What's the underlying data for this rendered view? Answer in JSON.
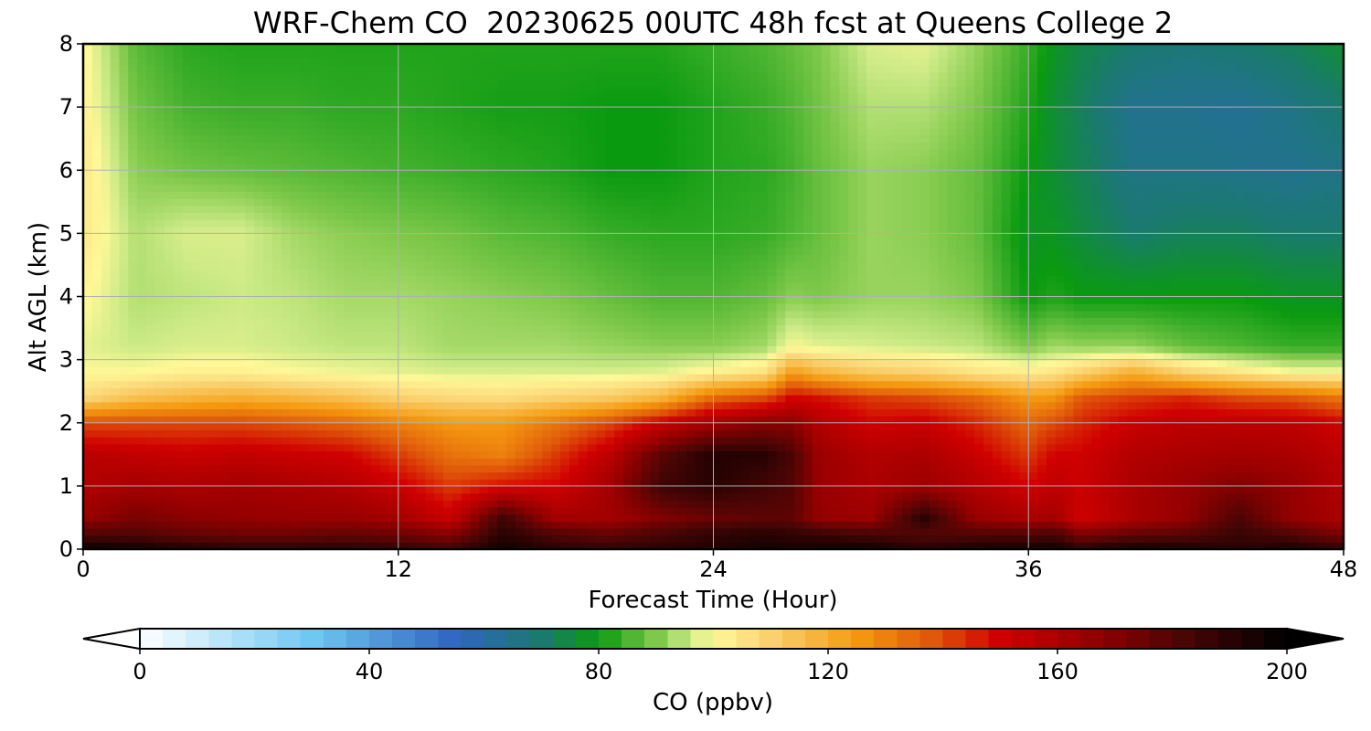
{
  "chart_data": {
    "type": "heatmap",
    "title": "WRF-Chem CO  20230625 00UTC 48h fcst at Queens College 2",
    "xlabel": "Forecast Time (Hour)",
    "ylabel": "Alt AGL (km)",
    "xlim": [
      0,
      48
    ],
    "ylim": [
      0,
      8
    ],
    "xticks": [
      "0",
      "12",
      "24",
      "36",
      "48"
    ],
    "yticks": [
      "0",
      "1",
      "2",
      "3",
      "4",
      "5",
      "6",
      "7",
      "8"
    ],
    "grid": true,
    "colorbar": {
      "label": "CO  (ppbv)",
      "range": [
        0,
        200
      ],
      "ticks": [
        "0",
        "40",
        "80",
        "120",
        "160",
        "200"
      ],
      "extend": "both",
      "stops": [
        {
          "v": 0,
          "c": "#ffffff"
        },
        {
          "v": 30,
          "c": "#6ec8f2"
        },
        {
          "v": 55,
          "c": "#2f65c0"
        },
        {
          "v": 70,
          "c": "#1a7a6e"
        },
        {
          "v": 80,
          "c": "#0a9a10"
        },
        {
          "v": 90,
          "c": "#7ec84a"
        },
        {
          "v": 96,
          "c": "#ccea86"
        },
        {
          "v": 100,
          "c": "#fff898"
        },
        {
          "v": 108,
          "c": "#fbd87a"
        },
        {
          "v": 125,
          "c": "#f59a10"
        },
        {
          "v": 138,
          "c": "#e0580a"
        },
        {
          "v": 150,
          "c": "#d00000"
        },
        {
          "v": 165,
          "c": "#980000"
        },
        {
          "v": 182,
          "c": "#4a0505"
        },
        {
          "v": 200,
          "c": "#000000"
        }
      ]
    },
    "x": [
      0,
      2,
      4,
      6,
      8,
      10,
      12,
      14,
      16,
      18,
      20,
      22,
      24,
      26,
      27,
      28,
      30,
      32,
      34,
      36,
      37,
      38,
      40,
      42,
      44,
      46,
      48
    ],
    "y": [
      0,
      0.25,
      0.5,
      1,
      1.5,
      2,
      2.4,
      2.8,
      3.2,
      4,
      5,
      6,
      7,
      8
    ],
    "z": [
      [
        198,
        180,
        165,
        158,
        156,
        140,
        108,
        100,
        98,
        101,
        104,
        104,
        102,
        101
      ],
      [
        196,
        180,
        172,
        162,
        154,
        140,
        115,
        100,
        96,
        94,
        94,
        91,
        89,
        87
      ],
      [
        192,
        176,
        168,
        160,
        152,
        140,
        118,
        102,
        97,
        95,
        97,
        89,
        85,
        83
      ],
      [
        190,
        174,
        166,
        162,
        154,
        140,
        120,
        102,
        97,
        96,
        97,
        88,
        84,
        82
      ],
      [
        190,
        174,
        165,
        160,
        152,
        138,
        118,
        100,
        96,
        95,
        93,
        87,
        84,
        82
      ],
      [
        190,
        176,
        165,
        158,
        150,
        135,
        115,
        99,
        95,
        93,
        91,
        86,
        83,
        82
      ],
      [
        188,
        174,
        162,
        152,
        142,
        130,
        110,
        98,
        95,
        93,
        90,
        85,
        83,
        82
      ],
      [
        185,
        168,
        152,
        142,
        133,
        125,
        108,
        97,
        93,
        92,
        89,
        84,
        82,
        82
      ],
      [
        196,
        190,
        185,
        148,
        130,
        125,
        107,
        97,
        93,
        91,
        87,
        83,
        81,
        82
      ],
      [
        190,
        180,
        162,
        150,
        142,
        132,
        110,
        97,
        93,
        90,
        86,
        82,
        81,
        82
      ],
      [
        188,
        176,
        162,
        162,
        155,
        140,
        112,
        97,
        92,
        88,
        84,
        80,
        80,
        82
      ],
      [
        190,
        182,
        170,
        185,
        178,
        152,
        118,
        98,
        91,
        86,
        83,
        80,
        80,
        82
      ],
      [
        192,
        188,
        176,
        190,
        192,
        162,
        135,
        102,
        91,
        86,
        83,
        82,
        82,
        84
      ],
      [
        195,
        190,
        178,
        184,
        190,
        168,
        140,
        106,
        93,
        88,
        84,
        83,
        84,
        86
      ],
      [
        194,
        188,
        178,
        180,
        182,
        168,
        150,
        125,
        100,
        91,
        86,
        85,
        86,
        88
      ],
      [
        195,
        186,
        166,
        165,
        164,
        158,
        148,
        118,
        98,
        90,
        88,
        88,
        89,
        90
      ],
      [
        196,
        182,
        164,
        160,
        158,
        150,
        142,
        112,
        97,
        92,
        92,
        92,
        94,
        97
      ],
      [
        190,
        180,
        190,
        164,
        160,
        152,
        140,
        110,
        96,
        92,
        91,
        91,
        94,
        98
      ],
      [
        194,
        180,
        165,
        158,
        152,
        145,
        135,
        105,
        95,
        90,
        88,
        88,
        90,
        92
      ],
      [
        195,
        180,
        160,
        150,
        142,
        135,
        125,
        103,
        90,
        80,
        78,
        80,
        82,
        84
      ],
      [
        196,
        182,
        162,
        155,
        150,
        140,
        126,
        105,
        93,
        82,
        78,
        76,
        76,
        78
      ],
      [
        190,
        170,
        150,
        152,
        150,
        145,
        138,
        110,
        92,
        80,
        75,
        73,
        72,
        74
      ],
      [
        196,
        176,
        160,
        160,
        158,
        152,
        142,
        120,
        92,
        80,
        70,
        66,
        64,
        70
      ],
      [
        194,
        178,
        166,
        165,
        160,
        155,
        145,
        110,
        88,
        80,
        72,
        66,
        64,
        68
      ],
      [
        190,
        186,
        182,
        170,
        162,
        155,
        140,
        105,
        86,
        80,
        72,
        65,
        63,
        70
      ],
      [
        194,
        180,
        166,
        166,
        160,
        155,
        138,
        100,
        84,
        78,
        70,
        64,
        66,
        72
      ],
      [
        188,
        170,
        160,
        158,
        155,
        150,
        132,
        100,
        84,
        78,
        70,
        66,
        70,
        76
      ]
    ]
  }
}
